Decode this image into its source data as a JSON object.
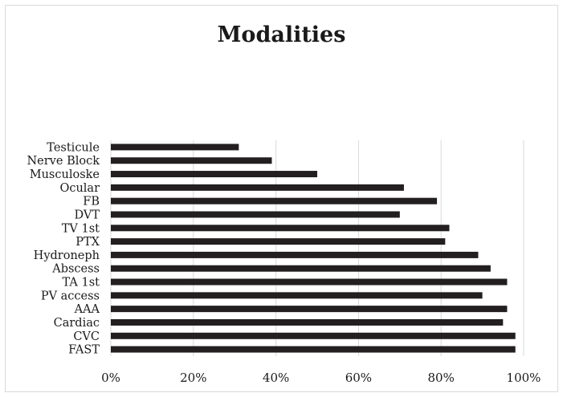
{
  "chart_data": {
    "type": "bar",
    "orientation": "horizontal",
    "title": "Modalities",
    "xlabel": "",
    "ylabel": "",
    "categories": [
      "Testicule",
      "Nerve Block",
      "Musculoske",
      "Ocular",
      "FB",
      "DVT",
      "TV 1st",
      "PTX",
      "Hydroneph",
      "Abscess",
      "TA 1st",
      "PV access",
      "AAA",
      "Cardiac",
      "CVC",
      "FAST"
    ],
    "values": [
      31,
      39,
      50,
      71,
      79,
      70,
      82,
      81,
      89,
      92,
      96,
      90,
      96,
      95,
      98,
      98
    ],
    "value_unit": "%",
    "xlim": [
      0,
      100
    ],
    "x_ticks": [
      "0%",
      "20%",
      "40%",
      "60%",
      "80%",
      "100%"
    ],
    "grid": "vertical",
    "legend": "none",
    "bar_color": "#231f20",
    "grid_color": "#d9d9d9"
  }
}
